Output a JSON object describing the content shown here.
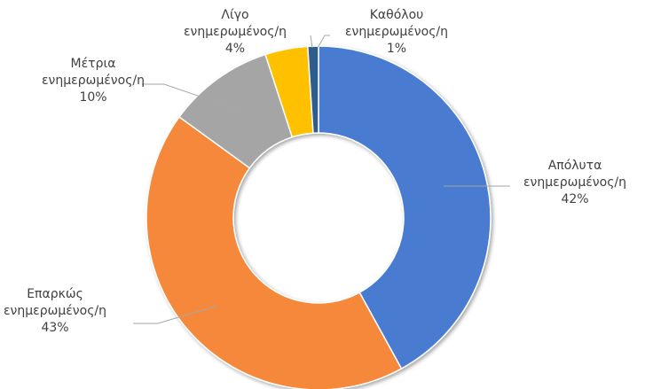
{
  "chart_data": {
    "type": "donut",
    "categories": [
      "Απόλυτα ενημερωμένος/η",
      "Επαρκώς ενημερωμένος/η",
      "Μέτρια ενημερωμένος/η",
      "Λίγο ενημερωμένος/η",
      "Καθόλου ενημερωμένος/η"
    ],
    "values": [
      42,
      43,
      10,
      4,
      1
    ],
    "value_labels": [
      "42%",
      "43%",
      "10%",
      "4%",
      "1%"
    ],
    "colors": [
      "#4a7bd0",
      "#f5883a",
      "#a5a5a5",
      "#ffc000",
      "#2e5d8c"
    ]
  }
}
